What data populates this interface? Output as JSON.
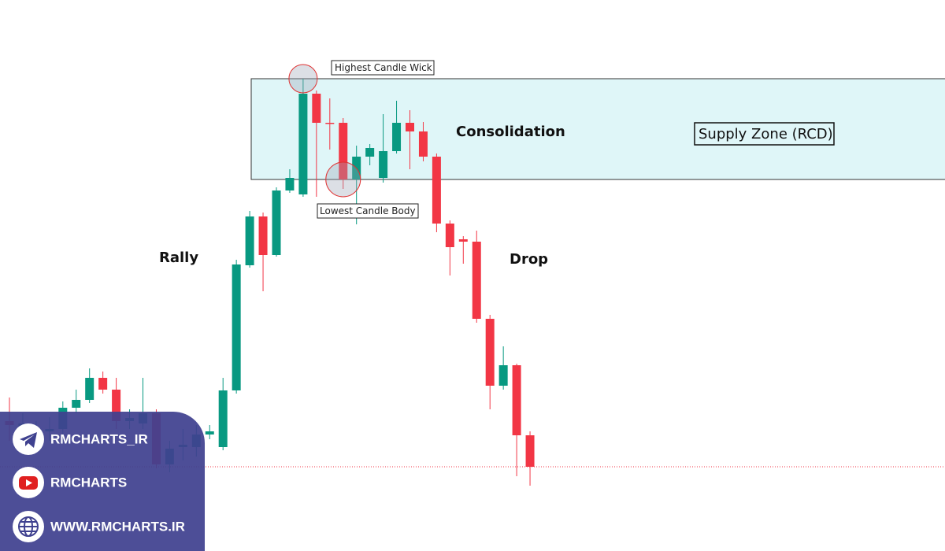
{
  "chart_data": {
    "type": "candlestick",
    "up_color": "#089981",
    "down_color": "#f23645",
    "ylim": [
      0,
      700
    ],
    "open": [
      165,
      152,
      150,
      152,
      155,
      182,
      192,
      220,
      205,
      165,
      162,
      175,
      110,
      132,
      132,
      148,
      132,
      204,
      363,
      425,
      376,
      458,
      453,
      581,
      544,
      544,
      472,
      501,
      474,
      508,
      544,
      533,
      501,
      416,
      396,
      393,
      295,
      210,
      236,
      147
    ],
    "high": [
      195,
      175,
      165,
      170,
      190,
      205,
      232,
      228,
      220,
      180,
      220,
      180,
      140,
      155,
      160,
      160,
      220,
      370,
      432,
      430,
      462,
      485,
      600,
      585,
      575,
      550,
      515,
      517,
      555,
      572,
      560,
      545,
      505,
      420,
      400,
      407,
      300,
      260,
      238,
      152
    ],
    "low": [
      140,
      140,
      140,
      140,
      140,
      175,
      188,
      200,
      155,
      155,
      155,
      105,
      100,
      115,
      120,
      142,
      128,
      200,
      360,
      330,
      374,
      455,
      450,
      450,
      510,
      460,
      415,
      490,
      468,
      505,
      485,
      495,
      405,
      350,
      365,
      290,
      180,
      205,
      95,
      83
    ],
    "close": [
      160,
      162,
      155,
      155,
      182,
      192,
      220,
      205,
      165,
      169,
      175,
      110,
      130,
      135,
      148,
      152,
      204,
      364,
      425,
      376,
      458,
      474,
      581,
      544,
      543,
      472,
      501,
      512,
      508,
      544,
      533,
      501,
      416,
      386,
      393,
      295,
      210,
      236,
      147,
      107
    ],
    "zone": {
      "label": "Supply Zone (RCD)",
      "top": 600,
      "bottom": 472,
      "color": "#dff6f8"
    },
    "hline": {
      "value": 107,
      "color": "#f23645"
    },
    "annotations": {
      "highest": "Highest Candle Wick",
      "lowest": "Lowest Candle Body",
      "consolidation": "Consolidation",
      "rally": "Rally",
      "drop": "Drop"
    }
  },
  "panel": {
    "telegram": "RMCHARTS_IR",
    "youtube": "RMCHARTS",
    "website": "WWW.RMCHARTS.IR"
  }
}
